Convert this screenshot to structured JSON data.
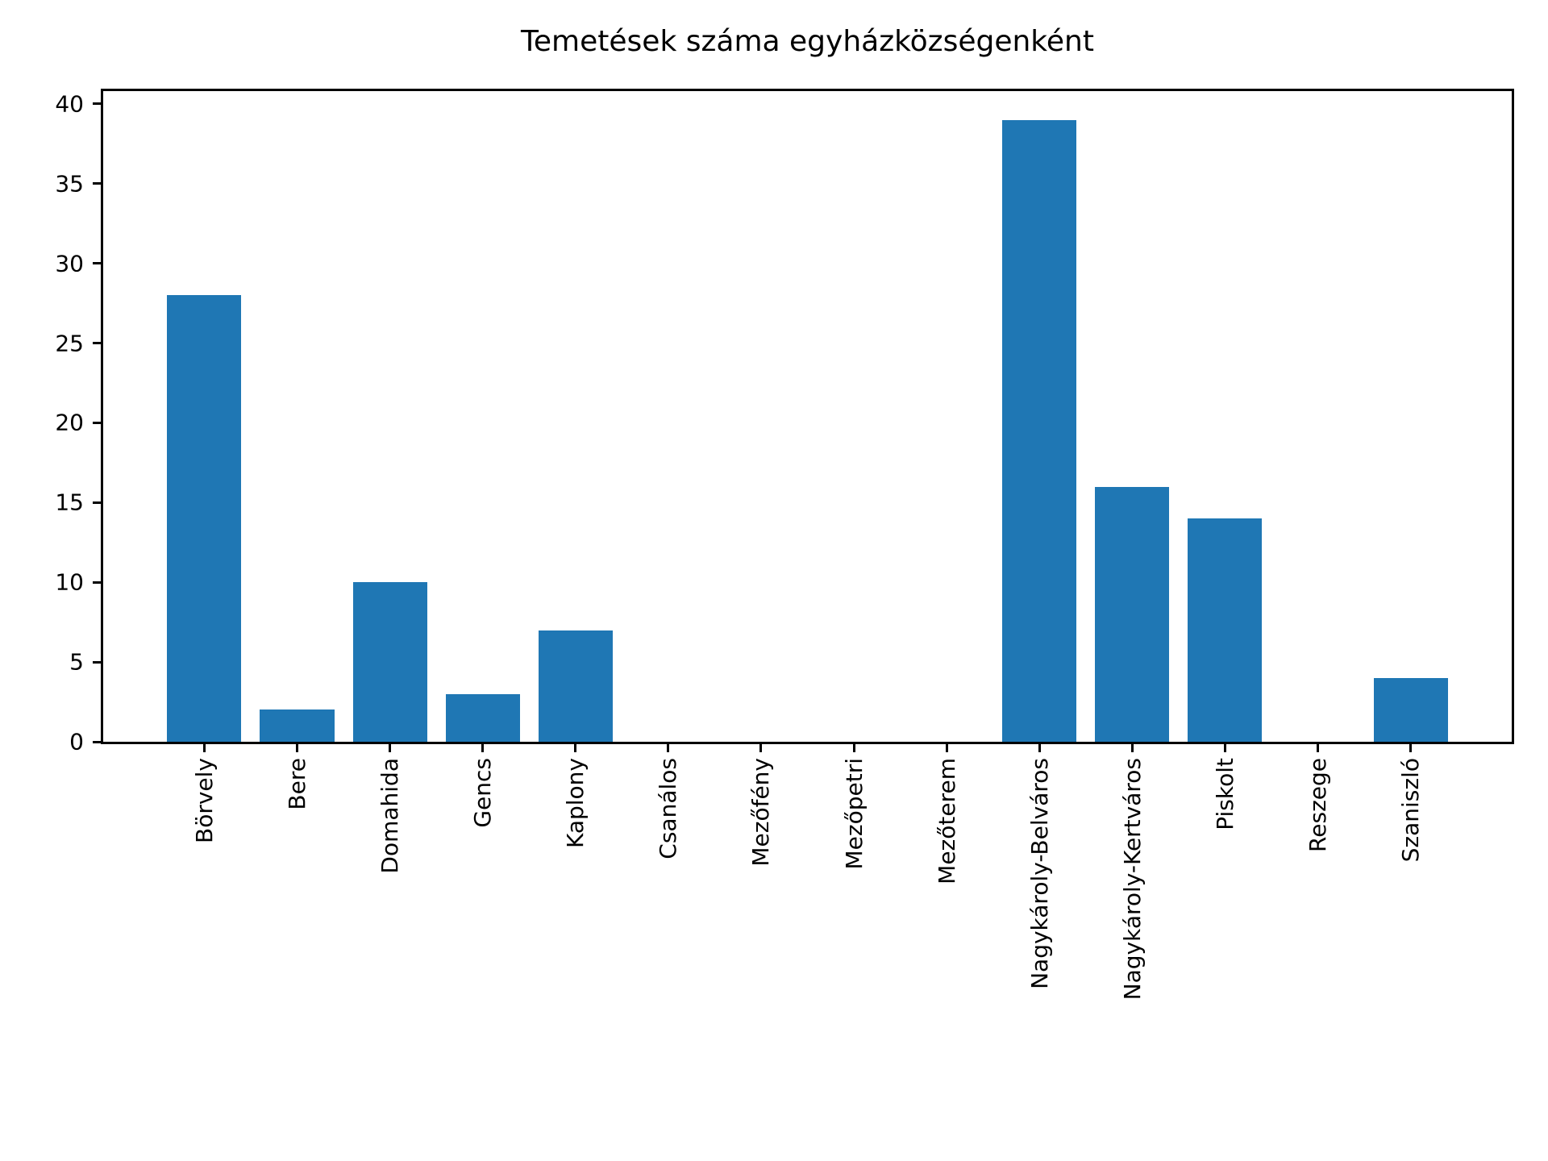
{
  "chart_data": {
    "type": "bar",
    "title": "Temetések száma egyházközségenként",
    "categories": [
      "Börvely",
      "Bere",
      "Domahida",
      "Gencs",
      "Kaplony",
      "Csanálos",
      "Mezőfény",
      "Mezőpetri",
      "Mezőterem",
      "Nagykároly-Belváros",
      "Nagykároly-Kertváros",
      "Piskolt",
      "Reszege",
      "Szaniszló"
    ],
    "values": [
      28,
      2,
      10,
      3,
      7,
      0,
      0,
      0,
      0,
      39,
      16,
      14,
      0,
      4
    ],
    "xlabel": "",
    "ylabel": "",
    "yticks": [
      0,
      5,
      10,
      15,
      20,
      25,
      30,
      35,
      40
    ],
    "ylim": [
      0,
      40.8
    ],
    "xlim": [
      -1.09,
      14.09
    ],
    "bar_width": 0.8,
    "tick_label_rotation": 90,
    "grid": false,
    "legend": null,
    "bar_color": "#1f77b4",
    "axis_color": "#000000",
    "background_color": "#ffffff"
  }
}
